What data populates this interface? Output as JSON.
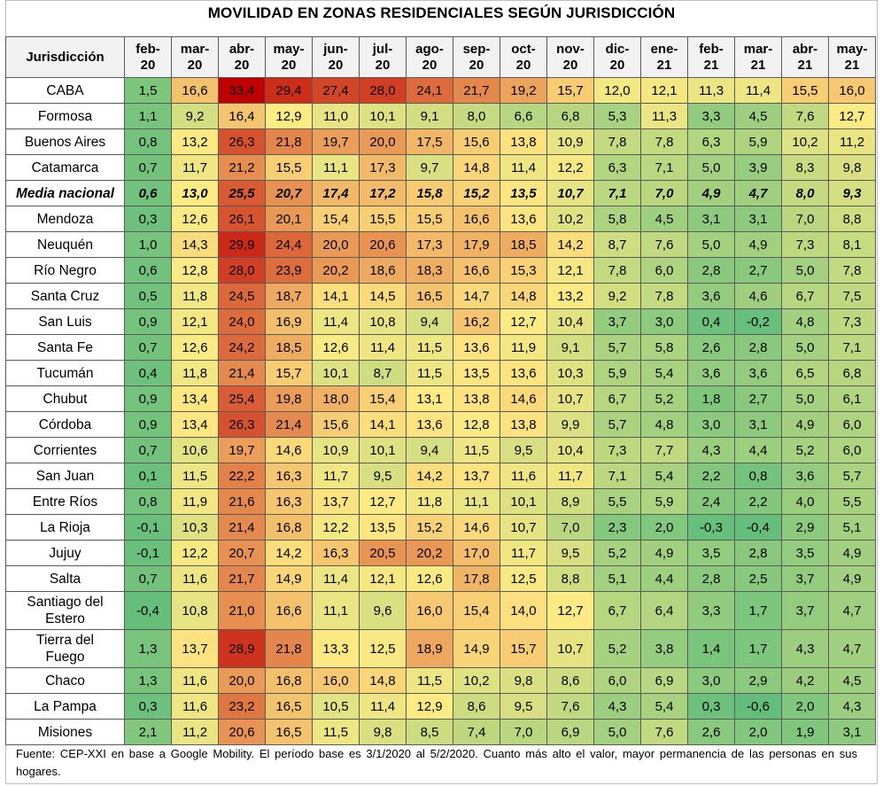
{
  "title": "MOVILIDAD EN ZONAS RESIDENCIALES SEGÚN JURISDICCIÓN",
  "row_header": "Jurisdicción",
  "footnote": "Fuente: CEP-XXI en base a Google Mobility. El período base es 3/1/2020 al 5/2/2020. Cuanto más alto el valor, mayor permanencia de las personas en sus hogares.",
  "colors": {
    "low": "#63be7b",
    "mid": "#ffeb84",
    "high": "#c00000",
    "header_bg": "#f2f2f2"
  },
  "chart_data": {
    "type": "heatmap",
    "title": "MOVILIDAD EN ZONAS RESIDENCIALES SEGÚN JURISDICCIÓN",
    "x_header": "Jurisdicción",
    "columns": [
      [
        "feb-",
        "20"
      ],
      [
        "mar-",
        "20"
      ],
      [
        "abr-",
        "20"
      ],
      [
        "may-",
        "20"
      ],
      [
        "jun-",
        "20"
      ],
      [
        "jul-",
        "20"
      ],
      [
        "ago-",
        "20"
      ],
      [
        "sep-",
        "20"
      ],
      [
        "oct-",
        "20"
      ],
      [
        "nov-",
        "20"
      ],
      [
        "dic-",
        "20"
      ],
      [
        "ene-",
        "21"
      ],
      [
        "feb-",
        "21"
      ],
      [
        "mar-",
        "21"
      ],
      [
        "abr-",
        "21"
      ],
      [
        "may-",
        "21"
      ]
    ],
    "rows": [
      {
        "name": [
          "CABA"
        ],
        "values": [
          "1,5",
          "16,6",
          "33,4",
          "29,4",
          "27,4",
          "28,0",
          "24,1",
          "21,7",
          "19,2",
          "15,7",
          "12,0",
          "12,1",
          "11,3",
          "11,4",
          "15,5",
          "16,0"
        ]
      },
      {
        "name": [
          "Formosa"
        ],
        "values": [
          "1,1",
          "9,2",
          "16,4",
          "12,9",
          "11,0",
          "10,1",
          "9,1",
          "8,0",
          "6,6",
          "6,8",
          "5,3",
          "11,3",
          "3,3",
          "4,5",
          "7,6",
          "12,7"
        ]
      },
      {
        "name": [
          "Buenos Aires"
        ],
        "values": [
          "0,8",
          "13,2",
          "26,3",
          "21,8",
          "19,7",
          "20,0",
          "17,5",
          "15,6",
          "13,8",
          "10,9",
          "7,8",
          "7,8",
          "6,3",
          "5,9",
          "10,2",
          "11,2"
        ]
      },
      {
        "name": [
          "Catamarca"
        ],
        "values": [
          "0,7",
          "11,7",
          "21,2",
          "15,5",
          "11,1",
          "17,3",
          "9,7",
          "14,8",
          "11,4",
          "12,2",
          "6,3",
          "7,1",
          "5,0",
          "3,9",
          "8,3",
          "9,8"
        ]
      },
      {
        "name": [
          "Media nacional"
        ],
        "bold": true,
        "values": [
          "0,6",
          "13,0",
          "25,5",
          "20,7",
          "17,4",
          "17,2",
          "15,8",
          "15,2",
          "13,5",
          "10,7",
          "7,1",
          "7,0",
          "4,9",
          "4,7",
          "8,0",
          "9,3"
        ]
      },
      {
        "name": [
          "Mendoza"
        ],
        "values": [
          "0,3",
          "12,6",
          "26,1",
          "20,1",
          "15,4",
          "15,5",
          "15,5",
          "16,6",
          "13,6",
          "10,2",
          "5,8",
          "4,5",
          "3,1",
          "3,1",
          "7,0",
          "8,8"
        ]
      },
      {
        "name": [
          "Neuquén"
        ],
        "values": [
          "1,0",
          "14,3",
          "29,9",
          "24,4",
          "20,0",
          "20,6",
          "17,3",
          "17,9",
          "18,5",
          "14,2",
          "8,7",
          "7,6",
          "5,0",
          "4,9",
          "7,3",
          "8,1"
        ]
      },
      {
        "name": [
          "Río Negro"
        ],
        "values": [
          "0,6",
          "12,8",
          "28,0",
          "23,9",
          "20,2",
          "18,6",
          "18,3",
          "16,6",
          "15,3",
          "12,1",
          "7,8",
          "6,0",
          "2,8",
          "2,7",
          "5,0",
          "7,8"
        ]
      },
      {
        "name": [
          "Santa Cruz"
        ],
        "values": [
          "0,5",
          "11,8",
          "24,5",
          "18,7",
          "14,1",
          "14,5",
          "16,5",
          "14,7",
          "14,8",
          "13,2",
          "9,2",
          "7,8",
          "3,6",
          "4,6",
          "6,7",
          "7,5"
        ]
      },
      {
        "name": [
          "San Luis"
        ],
        "values": [
          "0,9",
          "12,1",
          "24,0",
          "16,9",
          "11,4",
          "10,8",
          "9,4",
          "16,2",
          "12,7",
          "10,4",
          "3,7",
          "3,0",
          "0,4",
          "-0,2",
          "4,8",
          "7,3"
        ]
      },
      {
        "name": [
          "Santa Fe"
        ],
        "values": [
          "0,7",
          "12,6",
          "24,2",
          "18,5",
          "12,6",
          "11,4",
          "11,5",
          "13,6",
          "11,9",
          "9,1",
          "5,7",
          "5,8",
          "2,6",
          "2,8",
          "5,0",
          "7,1"
        ]
      },
      {
        "name": [
          "Tucumán"
        ],
        "values": [
          "0,4",
          "11,8",
          "21,4",
          "15,7",
          "10,1",
          "8,7",
          "11,5",
          "13,5",
          "13,6",
          "10,3",
          "5,9",
          "5,4",
          "3,6",
          "3,6",
          "6,5",
          "6,8"
        ]
      },
      {
        "name": [
          "Chubut"
        ],
        "values": [
          "0,9",
          "13,4",
          "25,4",
          "19,8",
          "18,0",
          "15,4",
          "13,1",
          "13,8",
          "14,6",
          "10,7",
          "6,7",
          "5,2",
          "1,8",
          "2,7",
          "5,0",
          "6,1"
        ]
      },
      {
        "name": [
          "Córdoba"
        ],
        "values": [
          "0,9",
          "13,4",
          "26,3",
          "21,4",
          "15,6",
          "14,1",
          "13,6",
          "12,8",
          "13,8",
          "9,9",
          "5,7",
          "4,8",
          "3,0",
          "3,1",
          "4,9",
          "6,0"
        ]
      },
      {
        "name": [
          "Corrientes"
        ],
        "values": [
          "0,7",
          "10,6",
          "19,7",
          "14,6",
          "10,9",
          "10,1",
          "9,4",
          "11,5",
          "9,5",
          "10,4",
          "7,3",
          "7,7",
          "4,3",
          "4,4",
          "5,2",
          "6,0"
        ]
      },
      {
        "name": [
          "San Juan"
        ],
        "values": [
          "0,1",
          "11,5",
          "22,2",
          "16,3",
          "11,7",
          "9,5",
          "14,2",
          "13,7",
          "11,6",
          "11,7",
          "7,1",
          "5,4",
          "2,2",
          "0,8",
          "3,6",
          "5,7"
        ]
      },
      {
        "name": [
          "Entre Ríos"
        ],
        "values": [
          "0,8",
          "11,9",
          "21,6",
          "16,3",
          "13,7",
          "12,7",
          "11,8",
          "11,1",
          "10,1",
          "8,9",
          "5,5",
          "5,9",
          "2,4",
          "2,2",
          "4,0",
          "5,5"
        ]
      },
      {
        "name": [
          "La Rioja"
        ],
        "values": [
          "-0,1",
          "10,3",
          "21,4",
          "16,8",
          "12,2",
          "13,5",
          "15,2",
          "14,6",
          "10,7",
          "7,0",
          "2,3",
          "2,0",
          "-0,3",
          "-0,4",
          "2,9",
          "5,1"
        ]
      },
      {
        "name": [
          "Jujuy"
        ],
        "values": [
          "-0,1",
          "12,2",
          "20,7",
          "14,2",
          "16,3",
          "20,5",
          "20,2",
          "17,0",
          "11,7",
          "9,5",
          "5,2",
          "4,9",
          "3,5",
          "2,8",
          "3,5",
          "4,9"
        ]
      },
      {
        "name": [
          "Salta"
        ],
        "values": [
          "0,7",
          "11,6",
          "21,7",
          "14,9",
          "11,4",
          "12,1",
          "12,6",
          "17,8",
          "12,5",
          "8,8",
          "5,1",
          "4,4",
          "2,8",
          "2,5",
          "3,7",
          "4,9"
        ]
      },
      {
        "name": [
          "Santiago del",
          "Estero"
        ],
        "values": [
          "-0,4",
          "10,8",
          "21,0",
          "16,6",
          "11,1",
          "9,6",
          "16,0",
          "15,4",
          "14,0",
          "12,7",
          "6,7",
          "6,4",
          "3,3",
          "1,7",
          "3,7",
          "4,7"
        ]
      },
      {
        "name": [
          "Tierra del",
          "Fuego"
        ],
        "values": [
          "1,3",
          "13,7",
          "28,9",
          "21,8",
          "13,3",
          "12,5",
          "18,9",
          "14,9",
          "15,7",
          "10,7",
          "5,2",
          "3,8",
          "1,4",
          "1,7",
          "4,3",
          "4,7"
        ]
      },
      {
        "name": [
          "Chaco"
        ],
        "values": [
          "1,3",
          "11,6",
          "20,0",
          "16,8",
          "16,0",
          "14,8",
          "11,5",
          "10,2",
          "9,8",
          "8,6",
          "6,0",
          "6,9",
          "3,0",
          "2,9",
          "4,2",
          "4,5"
        ]
      },
      {
        "name": [
          "La Pampa"
        ],
        "values": [
          "0,3",
          "11,6",
          "23,2",
          "16,5",
          "10,5",
          "11,4",
          "12,9",
          "8,6",
          "9,5",
          "7,6",
          "4,3",
          "5,4",
          "0,3",
          "-0,6",
          "2,0",
          "4,3"
        ]
      },
      {
        "name": [
          "Misiones"
        ],
        "values": [
          "2,1",
          "11,2",
          "20,6",
          "16,5",
          "11,5",
          "9,8",
          "8,5",
          "7,4",
          "7,0",
          "6,9",
          "5,0",
          "7,6",
          "2,6",
          "2,0",
          "1,9",
          "3,1"
        ]
      }
    ]
  }
}
